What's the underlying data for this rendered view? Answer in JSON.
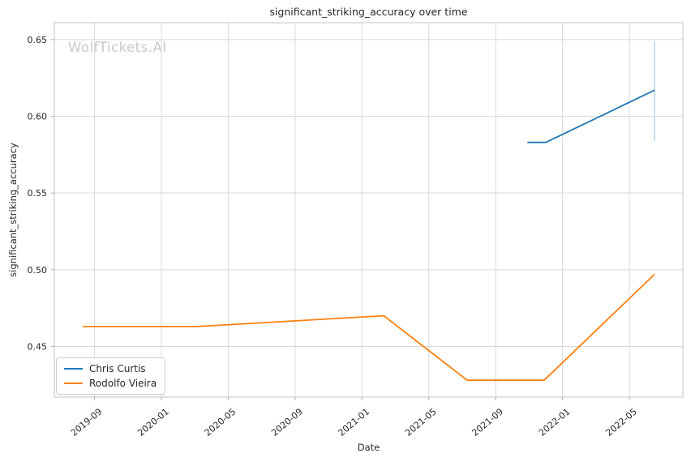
{
  "watermark": "WolfTickets.AI",
  "chart_data": {
    "type": "line",
    "title": "significant_striking_accuracy over time",
    "xlabel": "Date",
    "ylabel": "significant_striking_accuracy",
    "grid": true,
    "legend_position": "lower left",
    "x_unit": "months since 2019-01",
    "xlim": [
      5.6,
      43.2
    ],
    "ylim": [
      0.417,
      0.661
    ],
    "x_ticks": [
      8,
      12,
      16,
      20,
      24,
      28,
      32,
      36,
      40
    ],
    "x_tick_labels": [
      "2019-09",
      "2020-01",
      "2020-05",
      "2020-09",
      "2021-01",
      "2021-05",
      "2021-09",
      "2022-01",
      "2022-05"
    ],
    "y_ticks": [
      0.45,
      0.5,
      0.55,
      0.6,
      0.65
    ],
    "y_tick_labels": [
      "0.45",
      "0.50",
      "0.55",
      "0.60",
      "0.65"
    ],
    "series": [
      {
        "name": "Chris Curtis",
        "color": "#1f77b4",
        "dates": [
          "2021-11",
          "2021-12",
          "2022-06"
        ],
        "x": [
          33.9,
          35.0,
          41.5
        ],
        "y": [
          0.583,
          0.583,
          0.617
        ],
        "error_bar": {
          "x": 41.5,
          "y_low": 0.584,
          "y_high": 0.649,
          "color": "#b5d4e9"
        }
      },
      {
        "name": "Rodolfo Vieira",
        "color": "#ff7f0e",
        "dates": [
          "2019-08",
          "2020-03",
          "2021-02",
          "2021-07",
          "2021-12",
          "2022-06"
        ],
        "x": [
          7.3,
          14.1,
          25.3,
          30.3,
          34.9,
          41.5
        ],
        "y": [
          0.463,
          0.463,
          0.47,
          0.428,
          0.428,
          0.497
        ]
      }
    ],
    "colors": {
      "grid": "#d9d9d9",
      "spine": "#c3c3c3",
      "tick": "#b0b0b0",
      "text": "#262626",
      "watermark": "#c9c9c9"
    }
  }
}
